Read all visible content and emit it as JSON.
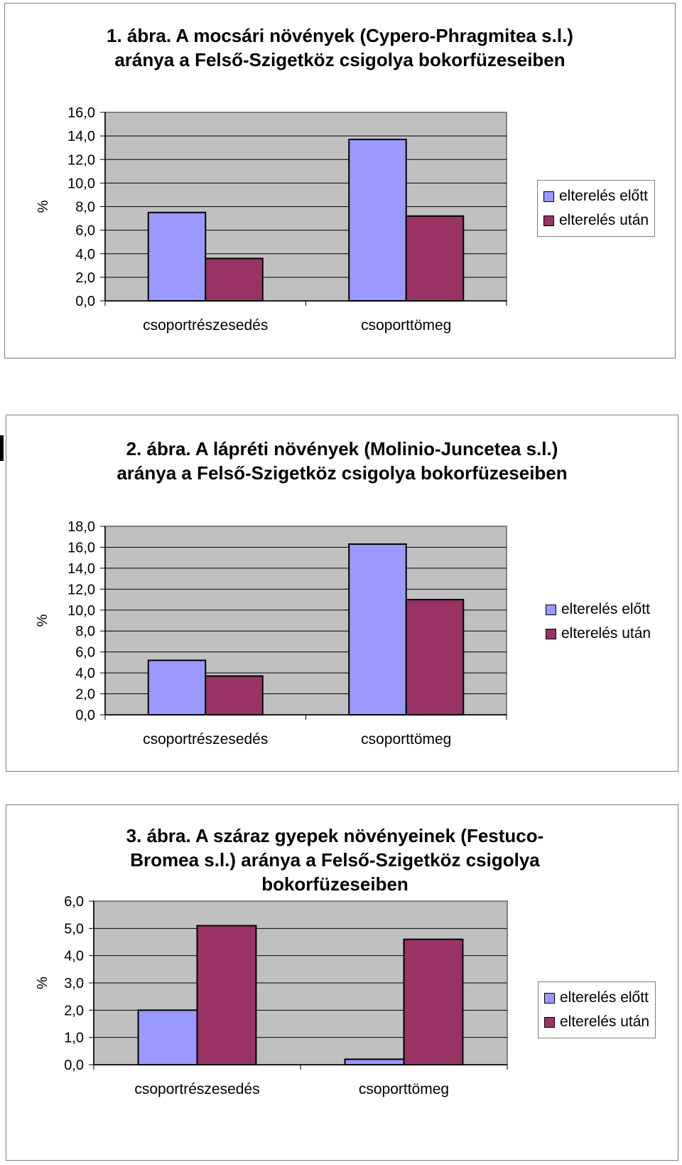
{
  "legend": [
    "elterelés előtt",
    "elterelés után"
  ],
  "colors": {
    "before": "#9999ff",
    "after": "#993366",
    "plot_bg": "#c0c0c0",
    "grid": "#000000"
  },
  "chart_data": [
    {
      "type": "bar",
      "title_lines": [
        "1. ábra. A mocsári növények (Cypero-Phragmitea s.l.)",
        "aránya a Felső-Szigetköz csigolya bokorfüzeseiben"
      ],
      "ylabel": "%",
      "categories": [
        "csoportrészesedés",
        "csoporttömeg"
      ],
      "series": [
        {
          "name": "elterelés előtt",
          "values": [
            7.5,
            13.7
          ]
        },
        {
          "name": "elterelés után",
          "values": [
            3.6,
            7.2
          ]
        }
      ],
      "ylim": [
        0,
        16
      ],
      "yticks": [
        "0,0",
        "2,0",
        "4,0",
        "6,0",
        "8,0",
        "10,0",
        "12,0",
        "14,0",
        "16,0"
      ],
      "grid": true,
      "legend_position": "right"
    },
    {
      "type": "bar",
      "title_lines": [
        "2. ábra. A lápréti növények (Molinio-Juncetea s.l.)",
        "aránya a Felső-Szigetköz csigolya bokorfüzeseiben"
      ],
      "ylabel": "%",
      "categories": [
        "csoportrészesedés",
        "csoporttömeg"
      ],
      "series": [
        {
          "name": "elterelés előtt",
          "values": [
            5.2,
            16.3
          ]
        },
        {
          "name": "elterelés után",
          "values": [
            3.7,
            11.0
          ]
        }
      ],
      "ylim": [
        0,
        18
      ],
      "yticks": [
        "0,0",
        "2,0",
        "4,0",
        "6,0",
        "8,0",
        "10,0",
        "12,0",
        "14,0",
        "16,0",
        "18,0"
      ],
      "grid": true,
      "legend_position": "right"
    },
    {
      "type": "bar",
      "title_lines": [
        "3. ábra. A száraz gyepek növényeinek (Festuco-",
        "Bromea s.l.) aránya a Felső-Szigetköz csigolya",
        "bokorfüzeseiben"
      ],
      "ylabel": "%",
      "categories": [
        "csoportrészesedés",
        "csoporttömeg"
      ],
      "series": [
        {
          "name": "elterelés előtt",
          "values": [
            2.0,
            0.2
          ]
        },
        {
          "name": "elterelés után",
          "values": [
            5.1,
            4.6
          ]
        }
      ],
      "ylim": [
        0,
        6
      ],
      "yticks": [
        "0,0",
        "1,0",
        "2,0",
        "3,0",
        "4,0",
        "5,0",
        "6,0"
      ],
      "grid": true,
      "legend_position": "right"
    }
  ]
}
